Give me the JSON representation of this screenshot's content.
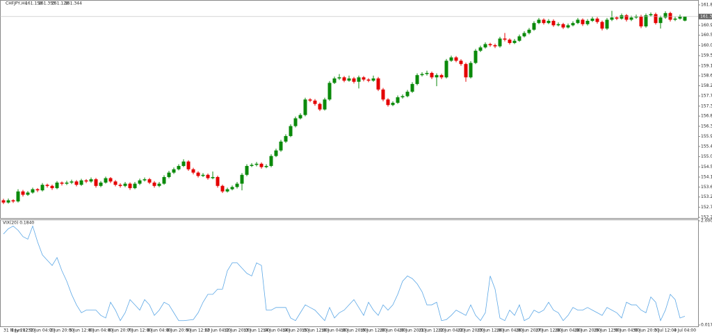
{
  "chart_data": [
    {
      "type": "candlestick",
      "title": "CHFJPY,H4",
      "up_color": "#0b8a0b",
      "down_color": "#e40000",
      "ylim": [
        152.25,
        162.09
      ],
      "yticks": [
        {
          "value": 152.28,
          "label": "152.280"
        },
        {
          "value": 152.74,
          "label": "152.740"
        },
        {
          "value": 153.2,
          "label": "153.200"
        },
        {
          "value": 153.65,
          "label": "153.650"
        },
        {
          "value": 154.1,
          "label": "154.100"
        },
        {
          "value": 154.56,
          "label": "154.560"
        },
        {
          "value": 155.02,
          "label": "155.020"
        },
        {
          "value": 155.48,
          "label": "155.480"
        },
        {
          "value": 155.93,
          "label": "155.930"
        },
        {
          "value": 156.39,
          "label": "156.390"
        },
        {
          "value": 156.85,
          "label": "156.850"
        },
        {
          "value": 157.3,
          "label": "157.300"
        },
        {
          "value": 157.76,
          "label": "157.760"
        },
        {
          "value": 158.22,
          "label": "158.220"
        },
        {
          "value": 158.67,
          "label": "158.670"
        },
        {
          "value": 159.12,
          "label": "159.120"
        },
        {
          "value": 159.58,
          "label": "159.580"
        },
        {
          "value": 160.04,
          "label": "160.040"
        },
        {
          "value": 160.5,
          "label": "160.500"
        },
        {
          "value": 160.95,
          "label": "160.950"
        },
        {
          "value": 161.87,
          "label": "161.870"
        }
      ],
      "categories": [
        "31 May 2023",
        null,
        null,
        null,
        "1 Jun 12:00",
        null,
        null,
        null,
        "2 Jun 04:00",
        null,
        null,
        null,
        "2 Jun 20:00",
        null,
        null,
        null,
        "5 Jun 12:00",
        null,
        null,
        null,
        "6 Jun 04:00",
        null,
        null,
        null,
        "6 Jun 20:00",
        null,
        null,
        null,
        "7 Jun 12:00",
        null,
        null,
        null,
        "8 Jun 04:00",
        null,
        null,
        null,
        "8 Jun 20:00",
        null,
        null,
        null,
        "9 Jun 12:00",
        null,
        null,
        null,
        "12 Jun 04:00",
        null,
        null,
        null,
        "12 Jun 20:00",
        null,
        null,
        null,
        "13 Jun 12:00",
        null,
        null,
        null,
        "14 Jun 04:00",
        null,
        null,
        null,
        "14 Jun 20:00",
        null,
        null,
        null,
        "15 Jun 12:00",
        null,
        null,
        null,
        "16 Jun 04:00",
        null,
        null,
        null,
        "16 Jun 20:00",
        null,
        null,
        null,
        "19 Jun 12:00",
        null,
        null,
        null,
        "20 Jun 04:00",
        null,
        null,
        null,
        "20 Jun 20:00",
        null,
        null,
        null,
        "21 Jun 12:00",
        null,
        null,
        null,
        "22 Jun 04:00",
        null,
        null,
        null,
        "22 Jun 20:00",
        null,
        null,
        null,
        "23 Jun 12:00",
        null,
        null,
        null,
        "26 Jun 04:00",
        null,
        null,
        null,
        "26 Jun 20:00",
        null,
        null,
        null,
        "27 Jun 12:00",
        null,
        null,
        null,
        "28 Jun 04:00",
        null,
        null,
        null,
        "28 Jun 20:00",
        null,
        null,
        null,
        "29 Jun 12:00",
        null,
        null,
        null,
        "30 Jun 04:00",
        null,
        null,
        null,
        "30 Jun 20:00",
        null,
        null,
        null,
        "3 Jul 12:00",
        null,
        null,
        null,
        "4 Jul 04:00"
      ],
      "ohlc": [
        [
          153.05,
          153.12,
          152.88,
          152.95
        ],
        [
          152.95,
          153.13,
          152.9,
          153.05
        ],
        [
          153.05,
          153.1,
          152.93,
          153.0
        ],
        [
          153.0,
          153.55,
          152.95,
          153.45
        ],
        [
          153.45,
          153.52,
          153.22,
          153.3
        ],
        [
          153.3,
          153.47,
          153.25,
          153.4
        ],
        [
          153.4,
          153.62,
          153.35,
          153.55
        ],
        [
          153.55,
          153.6,
          153.42,
          153.5
        ],
        [
          153.5,
          153.83,
          153.45,
          153.75
        ],
        [
          153.75,
          153.8,
          153.62,
          153.7
        ],
        [
          153.7,
          153.76,
          153.52,
          153.6
        ],
        [
          153.6,
          153.92,
          153.55,
          153.85
        ],
        [
          153.85,
          153.9,
          153.72,
          153.8
        ],
        [
          153.8,
          153.93,
          153.74,
          153.85
        ],
        [
          153.85,
          153.98,
          153.78,
          153.9
        ],
        [
          153.9,
          153.96,
          153.68,
          153.75
        ],
        [
          153.75,
          154.02,
          153.7,
          153.95
        ],
        [
          153.95,
          154.01,
          153.83,
          153.9
        ],
        [
          153.9,
          154.08,
          153.84,
          154.0
        ],
        [
          154.0,
          154.06,
          153.62,
          153.7
        ],
        [
          153.7,
          153.92,
          153.64,
          153.85
        ],
        [
          153.85,
          154.12,
          153.8,
          154.05
        ],
        [
          154.05,
          154.1,
          153.83,
          153.9
        ],
        [
          153.9,
          153.96,
          153.68,
          153.75
        ],
        [
          153.75,
          153.82,
          153.62,
          153.7
        ],
        [
          153.7,
          153.88,
          153.64,
          153.8
        ],
        [
          153.8,
          153.86,
          153.52,
          153.6
        ],
        [
          153.6,
          153.88,
          153.55,
          153.8
        ],
        [
          153.8,
          154.03,
          153.74,
          153.95
        ],
        [
          153.95,
          154.08,
          153.9,
          154.0
        ],
        [
          154.0,
          154.06,
          153.78,
          153.85
        ],
        [
          153.85,
          153.92,
          153.62,
          153.7
        ],
        [
          153.7,
          153.88,
          153.64,
          153.8
        ],
        [
          153.8,
          154.18,
          153.75,
          154.1
        ],
        [
          154.1,
          154.38,
          154.04,
          154.3
        ],
        [
          154.3,
          154.53,
          154.24,
          154.45
        ],
        [
          154.45,
          154.68,
          154.4,
          154.6
        ],
        [
          154.6,
          154.9,
          154.55,
          154.8
        ],
        [
          154.8,
          154.86,
          154.38,
          154.45
        ],
        [
          154.45,
          154.52,
          154.22,
          154.3
        ],
        [
          154.3,
          154.36,
          154.08,
          154.15
        ],
        [
          154.15,
          154.28,
          154.1,
          154.2
        ],
        [
          154.2,
          154.26,
          153.98,
          154.05
        ],
        [
          154.05,
          154.35,
          154.0,
          154.1
        ],
        [
          154.1,
          154.16,
          153.62,
          153.7
        ],
        [
          153.7,
          153.76,
          153.38,
          153.45
        ],
        [
          153.45,
          153.62,
          153.4,
          153.55
        ],
        [
          153.55,
          153.72,
          153.5,
          153.65
        ],
        [
          153.65,
          153.88,
          153.58,
          153.8
        ],
        [
          153.8,
          154.28,
          153.5,
          154.2
        ],
        [
          154.2,
          154.68,
          154.14,
          154.6
        ],
        [
          154.6,
          154.73,
          154.55,
          154.65
        ],
        [
          154.65,
          154.78,
          154.58,
          154.7
        ],
        [
          154.7,
          154.76,
          154.48,
          154.55
        ],
        [
          154.55,
          154.68,
          154.5,
          154.6
        ],
        [
          154.6,
          155.13,
          154.54,
          155.05
        ],
        [
          155.05,
          155.38,
          155.0,
          155.3
        ],
        [
          155.3,
          155.78,
          155.24,
          155.7
        ],
        [
          155.7,
          156.03,
          155.64,
          155.95
        ],
        [
          155.95,
          156.48,
          155.9,
          156.4
        ],
        [
          156.4,
          156.83,
          156.34,
          156.75
        ],
        [
          156.75,
          156.98,
          156.7,
          156.9
        ],
        [
          156.9,
          157.68,
          156.84,
          157.6
        ],
        [
          157.6,
          157.66,
          157.48,
          157.55
        ],
        [
          157.55,
          157.62,
          157.32,
          157.4
        ],
        [
          157.4,
          157.46,
          157.08,
          157.15
        ],
        [
          157.15,
          157.68,
          157.1,
          157.6
        ],
        [
          157.6,
          158.43,
          157.54,
          158.35
        ],
        [
          158.35,
          158.63,
          158.3,
          158.55
        ],
        [
          158.55,
          158.75,
          158.48,
          158.6
        ],
        [
          158.6,
          158.66,
          158.38,
          158.45
        ],
        [
          158.45,
          158.68,
          158.4,
          158.55
        ],
        [
          158.55,
          158.62,
          158.32,
          158.4
        ],
        [
          158.4,
          158.68,
          158.1,
          158.6
        ],
        [
          158.6,
          158.66,
          158.42,
          158.5
        ],
        [
          158.5,
          158.56,
          158.38,
          158.45
        ],
        [
          158.45,
          158.68,
          158.4,
          158.55
        ],
        [
          158.55,
          158.62,
          157.98,
          158.05
        ],
        [
          158.05,
          158.12,
          157.52,
          157.6
        ],
        [
          157.6,
          157.66,
          157.28,
          157.35
        ],
        [
          157.35,
          157.52,
          157.3,
          157.45
        ],
        [
          157.45,
          157.78,
          157.4,
          157.7
        ],
        [
          157.7,
          157.83,
          157.64,
          157.75
        ],
        [
          157.75,
          158.03,
          157.7,
          157.95
        ],
        [
          157.95,
          158.38,
          157.9,
          158.3
        ],
        [
          158.3,
          158.78,
          158.24,
          158.7
        ],
        [
          158.7,
          158.83,
          158.64,
          158.75
        ],
        [
          158.75,
          158.9,
          158.68,
          158.8
        ],
        [
          158.8,
          158.86,
          158.52,
          158.6
        ],
        [
          158.6,
          158.78,
          158.2,
          158.7
        ],
        [
          158.7,
          158.76,
          158.52,
          158.6
        ],
        [
          158.6,
          159.43,
          158.55,
          159.35
        ],
        [
          159.35,
          159.58,
          159.3,
          159.5
        ],
        [
          159.5,
          159.56,
          159.28,
          159.35
        ],
        [
          159.35,
          159.42,
          159.12,
          159.2
        ],
        [
          159.2,
          159.26,
          158.4,
          158.6
        ],
        [
          158.6,
          159.33,
          158.55,
          159.25
        ],
        [
          159.25,
          159.88,
          159.2,
          159.8
        ],
        [
          159.8,
          160.03,
          159.74,
          159.95
        ],
        [
          159.95,
          160.18,
          159.9,
          160.1
        ],
        [
          160.1,
          160.16,
          159.98,
          160.05
        ],
        [
          160.05,
          160.12,
          159.92,
          160.0
        ],
        [
          160.0,
          160.43,
          159.94,
          160.35
        ],
        [
          160.35,
          160.6,
          160.22,
          160.3
        ],
        [
          160.3,
          160.36,
          160.08,
          160.15
        ],
        [
          160.15,
          160.33,
          160.1,
          160.25
        ],
        [
          160.25,
          160.53,
          160.2,
          160.45
        ],
        [
          160.45,
          160.68,
          160.4,
          160.6
        ],
        [
          160.6,
          160.83,
          160.54,
          160.75
        ],
        [
          160.75,
          161.13,
          160.7,
          161.05
        ],
        [
          161.05,
          161.28,
          161.0,
          161.2
        ],
        [
          161.2,
          161.26,
          160.98,
          161.05
        ],
        [
          161.05,
          161.23,
          161.0,
          161.15
        ],
        [
          161.15,
          161.22,
          160.88,
          160.95
        ],
        [
          160.95,
          161.08,
          160.9,
          161.0
        ],
        [
          161.0,
          161.06,
          160.78,
          160.85
        ],
        [
          160.85,
          161.03,
          160.8,
          160.95
        ],
        [
          160.95,
          161.13,
          160.9,
          161.05
        ],
        [
          161.05,
          161.28,
          161.0,
          161.2
        ],
        [
          161.2,
          161.26,
          160.92,
          161.0
        ],
        [
          161.0,
          161.23,
          160.94,
          161.15
        ],
        [
          161.15,
          161.33,
          161.1,
          161.25
        ],
        [
          161.25,
          161.32,
          161.02,
          161.1
        ],
        [
          161.1,
          161.16,
          160.72,
          160.8
        ],
        [
          160.8,
          161.28,
          160.74,
          161.2
        ],
        [
          161.2,
          161.6,
          161.14,
          161.3
        ],
        [
          161.3,
          161.36,
          161.18,
          161.25
        ],
        [
          161.25,
          161.48,
          161.2,
          161.4
        ],
        [
          161.4,
          161.46,
          161.12,
          161.2
        ],
        [
          161.2,
          161.38,
          161.14,
          161.3
        ],
        [
          161.3,
          161.43,
          161.24,
          161.35
        ],
        [
          161.35,
          161.42,
          160.82,
          160.9
        ],
        [
          160.9,
          161.48,
          160.84,
          161.4
        ],
        [
          161.4,
          161.53,
          161.34,
          161.45
        ],
        [
          161.45,
          161.52,
          160.98,
          161.05
        ],
        [
          161.05,
          161.38,
          160.8,
          161.3
        ],
        [
          161.3,
          161.58,
          161.24,
          161.5
        ],
        [
          161.5,
          161.56,
          161.12,
          161.2
        ],
        [
          161.2,
          161.33,
          161.14,
          161.25
        ],
        [
          161.25,
          161.43,
          161.2,
          161.35
        ],
        [
          161.158,
          161.355,
          161.128,
          161.344
        ]
      ]
    },
    {
      "type": "line",
      "title": "VIX(20) 0.1840",
      "color": "#5ba7e6",
      "ylim": [
        -0.0093,
        2.0265
      ],
      "yticks": [
        0.0171,
        2.0001
      ],
      "values": [
        1.75,
        1.85,
        1.9,
        1.82,
        1.7,
        1.65,
        1.9,
        1.6,
        1.35,
        1.25,
        1.15,
        1.3,
        1.05,
        0.85,
        0.6,
        0.4,
        0.25,
        0.3,
        0.3,
        0.3,
        0.2,
        0.15,
        0.45,
        0.3,
        0.1,
        0.25,
        0.5,
        0.4,
        0.3,
        0.5,
        0.4,
        0.2,
        0.3,
        0.45,
        0.4,
        0.25,
        0.1,
        0.1,
        0.11,
        0.12,
        0.25,
        0.45,
        0.6,
        0.6,
        0.7,
        0.7,
        1.05,
        1.2,
        1.2,
        1.1,
        1.0,
        0.95,
        1.2,
        1.15,
        0.3,
        0.3,
        0.35,
        0.35,
        0.35,
        0.15,
        0.1,
        0.25,
        0.4,
        0.35,
        0.3,
        0.2,
        0.1,
        0.35,
        0.15,
        0.25,
        0.3,
        0.4,
        0.5,
        0.35,
        0.2,
        0.45,
        0.3,
        0.2,
        0.4,
        0.3,
        0.4,
        0.6,
        0.85,
        0.95,
        0.9,
        0.8,
        0.65,
        0.4,
        0.4,
        0.45,
        0.1,
        0.12,
        0.2,
        0.3,
        0.25,
        0.2,
        0.4,
        0.2,
        0.1,
        0.25,
        0.95,
        0.7,
        0.15,
        0.1,
        0.3,
        0.2,
        0.4,
        0.1,
        0.15,
        0.3,
        0.25,
        0.3,
        0.45,
        0.3,
        0.25,
        0.1,
        0.2,
        0.35,
        0.3,
        0.3,
        0.35,
        0.3,
        0.25,
        0.2,
        0.35,
        0.3,
        0.25,
        0.15,
        0.45,
        0.4,
        0.4,
        0.3,
        0.25,
        0.55,
        0.45,
        0.1,
        0.3,
        0.6,
        0.5,
        0.15,
        0.184
      ]
    }
  ]
}
